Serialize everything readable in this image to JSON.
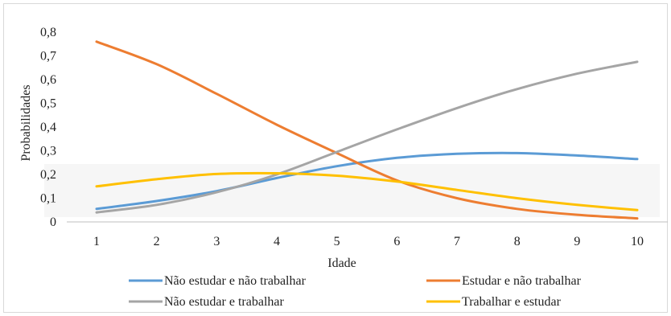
{
  "chart_data": {
    "type": "line",
    "xlabel": "Idade",
    "ylabel": "Probabilidades",
    "x": [
      1,
      2,
      3,
      4,
      5,
      6,
      7,
      8,
      9,
      10
    ],
    "x_tick_labels": [
      "1",
      "2",
      "3",
      "4",
      "5",
      "6",
      "7",
      "8",
      "9",
      "10"
    ],
    "y_tick_labels": [
      "0",
      "0,1",
      "0,2",
      "0,3",
      "0,4",
      "0,5",
      "0,6",
      "0,7",
      "0,8"
    ],
    "ylim": [
      0,
      0.8
    ],
    "grid": false,
    "legend_position": "bottom",
    "series": [
      {
        "name": "Não estudar e não trabalhar",
        "color": "#5b9bd5",
        "values": [
          0.055,
          0.088,
          0.13,
          0.185,
          0.235,
          0.27,
          0.287,
          0.29,
          0.28,
          0.265
        ]
      },
      {
        "name": "Estudar e não trabalhar",
        "color": "#ed7d31",
        "values": [
          0.76,
          0.665,
          0.54,
          0.41,
          0.29,
          0.175,
          0.1,
          0.055,
          0.03,
          0.015
        ]
      },
      {
        "name": "Não estudar e trabalhar",
        "color": "#a5a5a5",
        "values": [
          0.04,
          0.072,
          0.125,
          0.2,
          0.295,
          0.39,
          0.48,
          0.56,
          0.625,
          0.675
        ]
      },
      {
        "name": "Trabalhar e estudar",
        "color": "#ffc000",
        "values": [
          0.15,
          0.18,
          0.202,
          0.205,
          0.195,
          0.17,
          0.135,
          0.1,
          0.072,
          0.05
        ]
      }
    ]
  }
}
